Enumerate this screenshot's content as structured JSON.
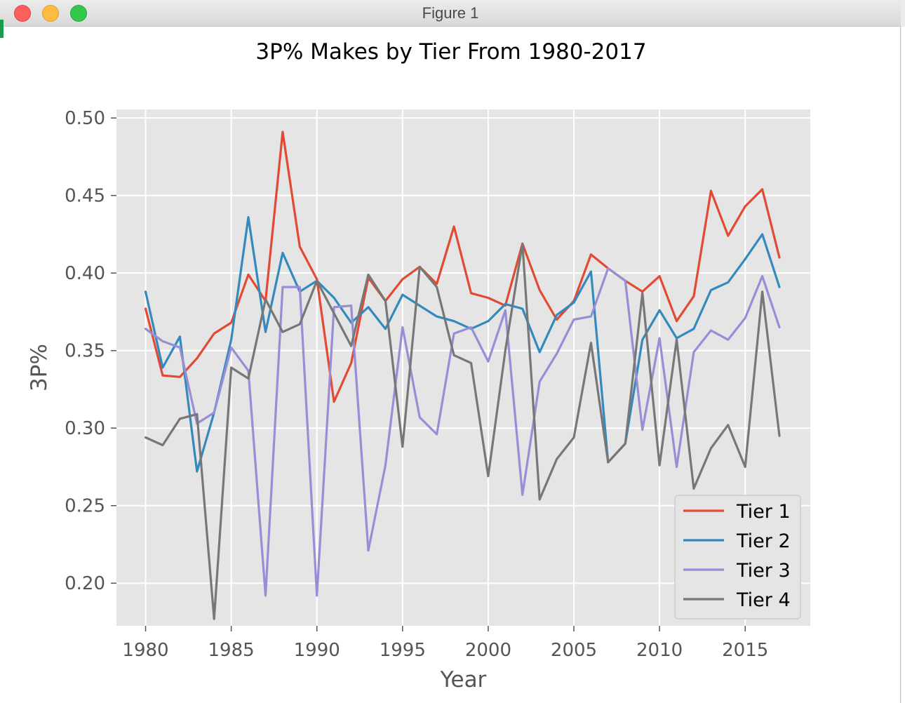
{
  "window": {
    "title": "Figure 1"
  },
  "chart_data": {
    "type": "line",
    "title": "3P% Makes by Tier From 1980-2017",
    "xlabel": "Year",
    "ylabel": "3P%",
    "xlim": [
      1978.3,
      2018.8
    ],
    "ylim": [
      0.1725,
      0.5055
    ],
    "xticks": [
      1980,
      1985,
      1990,
      1995,
      2000,
      2005,
      2010,
      2015
    ],
    "yticks": [
      0.2,
      0.25,
      0.3,
      0.35,
      0.4,
      0.45,
      0.5
    ],
    "ytick_labels": [
      "0.20",
      "0.25",
      "0.30",
      "0.35",
      "0.40",
      "0.45",
      "0.50"
    ],
    "grid": true,
    "legend_position": "lower-right",
    "x": [
      1980,
      1981,
      1982,
      1983,
      1984,
      1985,
      1986,
      1987,
      1988,
      1989,
      1990,
      1991,
      1992,
      1993,
      1994,
      1995,
      1996,
      1997,
      1998,
      1999,
      2000,
      2001,
      2002,
      2003,
      2004,
      2005,
      2006,
      2007,
      2008,
      2009,
      2010,
      2011,
      2012,
      2013,
      2014,
      2015,
      2016,
      2017
    ],
    "series": [
      {
        "name": "Tier 1",
        "color": "#e24a33",
        "values": [
          0.377,
          0.334,
          0.333,
          0.345,
          0.361,
          0.368,
          0.399,
          0.382,
          0.491,
          0.417,
          0.396,
          0.317,
          0.342,
          0.397,
          0.382,
          0.396,
          0.404,
          0.393,
          0.43,
          0.387,
          0.384,
          0.379,
          0.419,
          0.389,
          0.37,
          0.382,
          0.412,
          0.403,
          0.395,
          0.388,
          0.398,
          0.369,
          0.385,
          0.453,
          0.424,
          0.443,
          0.454,
          0.41
        ]
      },
      {
        "name": "Tier 2",
        "color": "#348abd",
        "values": [
          0.388,
          0.339,
          0.359,
          0.272,
          0.31,
          0.357,
          0.436,
          0.362,
          0.413,
          0.388,
          0.395,
          0.384,
          0.368,
          0.378,
          0.364,
          0.386,
          0.379,
          0.372,
          0.369,
          0.364,
          0.369,
          0.38,
          0.377,
          0.349,
          0.373,
          0.381,
          0.401,
          0.278,
          0.29,
          0.357,
          0.376,
          0.358,
          0.364,
          0.389,
          0.394,
          0.409,
          0.425,
          0.391
        ]
      },
      {
        "name": "Tier 3",
        "color": "#988ed5",
        "values": [
          0.364,
          0.356,
          0.352,
          0.303,
          0.31,
          0.352,
          0.337,
          0.192,
          0.391,
          0.391,
          0.192,
          0.378,
          0.379,
          0.221,
          0.276,
          0.365,
          0.307,
          0.296,
          0.361,
          0.365,
          0.343,
          0.376,
          0.257,
          0.33,
          0.348,
          0.37,
          0.372,
          0.403,
          0.395,
          0.299,
          0.358,
          0.275,
          0.349,
          0.363,
          0.357,
          0.371,
          0.398,
          0.365
        ]
      },
      {
        "name": "Tier 4",
        "color": "#777777",
        "values": [
          0.294,
          0.289,
          0.306,
          0.309,
          0.177,
          0.339,
          0.332,
          0.383,
          0.362,
          0.367,
          0.395,
          0.374,
          0.353,
          0.399,
          0.382,
          0.288,
          0.404,
          0.391,
          0.347,
          0.342,
          0.269,
          0.35,
          0.419,
          0.254,
          0.28,
          0.294,
          0.355,
          0.278,
          0.29,
          0.387,
          0.276,
          0.357,
          0.261,
          0.287,
          0.302,
          0.275,
          0.388,
          0.295
        ]
      }
    ]
  }
}
